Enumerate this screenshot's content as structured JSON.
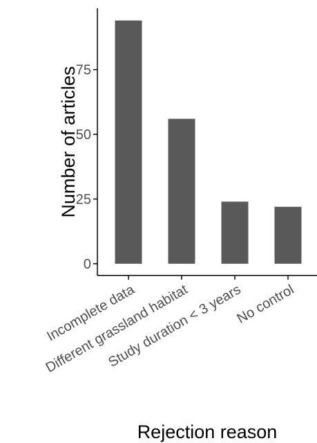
{
  "chart_data": {
    "type": "bar",
    "title": "",
    "xlabel": "Rejection reason",
    "ylabel": "Number of articles",
    "categories": [
      "Incomplete data",
      "Different grassland habitat",
      "Study duration < 3 years",
      "No control"
    ],
    "values": [
      94,
      56,
      24,
      22
    ],
    "ylim": [
      0,
      98.7
    ],
    "yticks": [
      0,
      25,
      50,
      75
    ],
    "grid": false,
    "legend": "none",
    "bar_color": "#595959",
    "axis_color": "#000000",
    "tick_label_color": "#4d4d4d"
  }
}
